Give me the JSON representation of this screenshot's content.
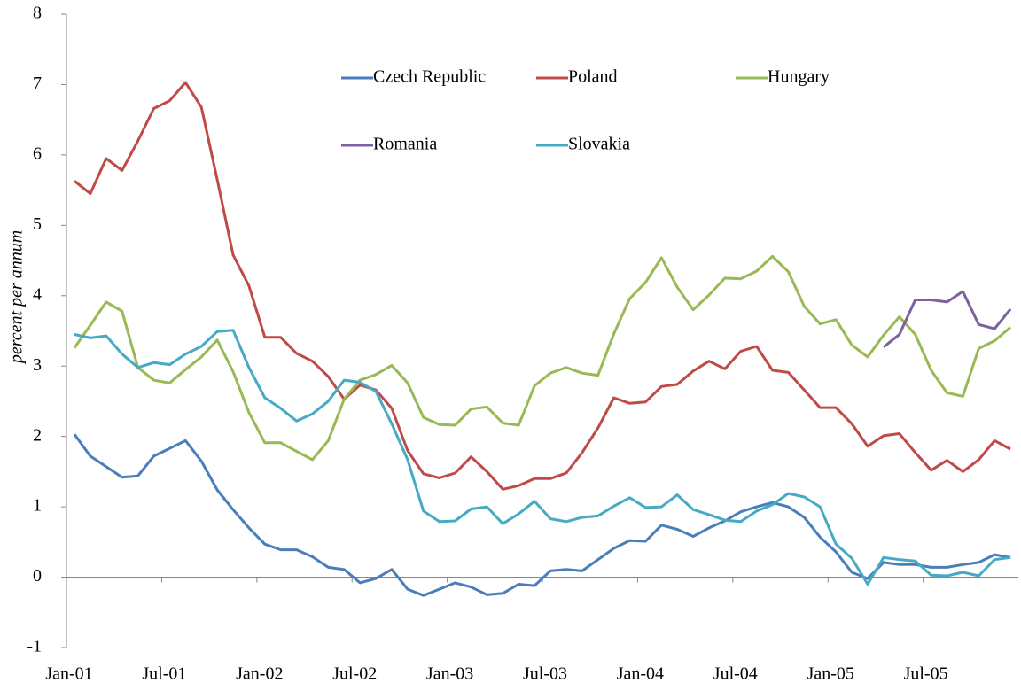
{
  "chart_data": {
    "type": "line",
    "y_label": "percent per annum",
    "categories": [
      "Jan-01",
      null,
      null,
      null,
      null,
      null,
      "Jul-01",
      null,
      null,
      null,
      null,
      null,
      "Jan-02",
      null,
      null,
      null,
      null,
      null,
      "Jul-02",
      null,
      null,
      null,
      null,
      null,
      "Jan-03",
      null,
      null,
      null,
      null,
      null,
      "Jul-03",
      null,
      null,
      null,
      null,
      null,
      "Jan-04",
      null,
      null,
      null,
      null,
      null,
      "Jul-04",
      null,
      null,
      null,
      null,
      null,
      "Jan-05",
      null,
      null,
      null,
      null,
      null,
      "Jul-05",
      null,
      null,
      null,
      null,
      null
    ],
    "series": [
      {
        "name": "Czech Republic",
        "color": "#4a7ebb",
        "values": [
          2.03,
          1.72,
          1.57,
          1.42,
          1.44,
          1.72,
          1.83,
          1.94,
          1.65,
          1.24,
          0.96,
          0.7,
          0.47,
          0.39,
          0.39,
          0.29,
          0.14,
          0.11,
          -0.08,
          -0.02,
          0.11,
          -0.17,
          -0.26,
          -0.17,
          -0.08,
          -0.14,
          -0.25,
          -0.23,
          -0.1,
          -0.12,
          0.09,
          0.11,
          0.09,
          0.25,
          0.41,
          0.52,
          0.51,
          0.74,
          0.68,
          0.58,
          0.7,
          0.8,
          0.93,
          1.0,
          1.06,
          1.0,
          0.85,
          0.57,
          0.36,
          0.07,
          -0.02,
          0.21,
          0.18,
          0.18,
          0.14,
          0.14,
          0.18,
          0.21,
          0.32,
          0.28
        ]
      },
      {
        "name": "Poland",
        "color": "#be4b48",
        "values": [
          5.63,
          5.45,
          5.95,
          5.78,
          6.2,
          6.66,
          6.77,
          7.03,
          6.68,
          5.65,
          4.58,
          4.14,
          3.41,
          3.41,
          3.18,
          3.07,
          2.85,
          2.53,
          2.73,
          2.66,
          2.4,
          1.8,
          1.47,
          1.41,
          1.48,
          1.71,
          1.5,
          1.25,
          1.3,
          1.4,
          1.4,
          1.48,
          1.77,
          2.12,
          2.55,
          2.47,
          2.49,
          2.71,
          2.74,
          2.93,
          3.07,
          2.96,
          3.21,
          3.28,
          2.94,
          2.91,
          2.66,
          2.41,
          2.41,
          2.18,
          1.86,
          2.01,
          2.04,
          1.77,
          1.52,
          1.66,
          1.5,
          1.67,
          1.94,
          1.82
        ]
      },
      {
        "name": "Hungary",
        "color": "#98b954",
        "values": [
          3.26,
          3.58,
          3.91,
          3.78,
          2.98,
          2.8,
          2.76,
          2.95,
          3.13,
          3.37,
          2.92,
          2.34,
          1.91,
          1.91,
          1.79,
          1.67,
          1.94,
          2.53,
          2.8,
          2.88,
          3.01,
          2.76,
          2.27,
          2.17,
          2.16,
          2.39,
          2.42,
          2.19,
          2.16,
          2.72,
          2.9,
          2.98,
          2.9,
          2.87,
          3.46,
          3.96,
          4.19,
          4.54,
          4.12,
          3.8,
          4.01,
          4.25,
          4.24,
          4.35,
          4.56,
          4.34,
          3.85,
          3.6,
          3.66,
          3.3,
          3.13,
          3.44,
          3.7,
          3.45,
          2.94,
          2.62,
          2.57,
          3.25,
          3.36,
          3.55
        ]
      },
      {
        "name": "Romania",
        "color": "#7d60a0",
        "values": [
          null,
          null,
          null,
          null,
          null,
          null,
          null,
          null,
          null,
          null,
          null,
          null,
          null,
          null,
          null,
          null,
          null,
          null,
          null,
          null,
          null,
          null,
          null,
          null,
          null,
          null,
          null,
          null,
          null,
          null,
          null,
          null,
          null,
          null,
          null,
          null,
          null,
          null,
          null,
          null,
          null,
          null,
          null,
          null,
          null,
          null,
          null,
          null,
          null,
          null,
          null,
          3.27,
          3.45,
          3.94,
          3.94,
          3.91,
          4.06,
          3.59,
          3.53,
          3.81
        ]
      },
      {
        "name": "Slovakia",
        "color": "#46aac5",
        "values": [
          3.45,
          3.4,
          3.43,
          3.17,
          2.98,
          3.05,
          3.02,
          3.17,
          3.28,
          3.49,
          3.51,
          2.98,
          2.55,
          2.4,
          2.22,
          2.32,
          2.5,
          2.8,
          2.77,
          2.64,
          2.18,
          1.67,
          0.94,
          0.79,
          0.8,
          0.97,
          1.0,
          0.76,
          0.9,
          1.08,
          0.83,
          0.79,
          0.85,
          0.87,
          1.01,
          1.13,
          0.99,
          1.0,
          1.17,
          0.96,
          0.89,
          0.81,
          0.79,
          0.94,
          1.03,
          1.19,
          1.14,
          1.0,
          0.47,
          0.27,
          -0.1,
          0.28,
          0.25,
          0.23,
          0.03,
          0.02,
          0.07,
          0.02,
          0.25,
          0.28
        ]
      }
    ],
    "ylim": [
      -1,
      8
    ],
    "yticks": [
      -1,
      0,
      1,
      2,
      3,
      4,
      5,
      6,
      7,
      8
    ]
  }
}
